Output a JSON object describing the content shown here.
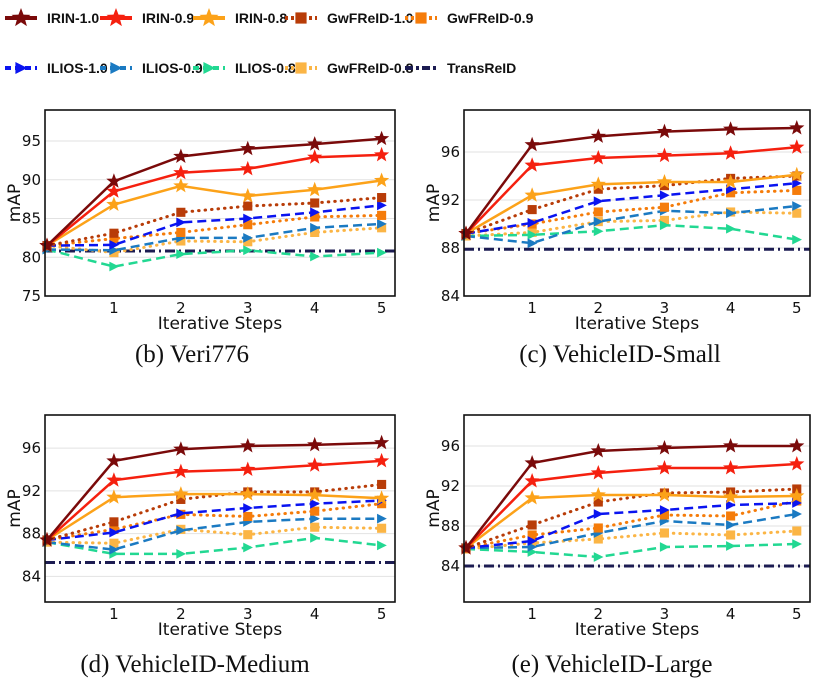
{
  "legend": {
    "placement": "top",
    "entries": [
      {
        "name": "IRIN-1.0",
        "color": "#7a0a0a",
        "line": "solid",
        "marker": "star"
      },
      {
        "name": "IRIN-0.9",
        "color": "#f5200f",
        "line": "solid",
        "marker": "star"
      },
      {
        "name": "IRIN-0.8",
        "color": "#fca219",
        "line": "solid",
        "marker": "star"
      },
      {
        "name": "GwFReID-1.0",
        "color": "#b83c08",
        "line": "dotted",
        "marker": "square"
      },
      {
        "name": "GwFReID-0.9",
        "color": "#f57c0a",
        "line": "dotted",
        "marker": "square"
      },
      {
        "name": "ILIOS-1.0",
        "color": "#0a14f0",
        "line": "dashed",
        "marker": "triangle-right"
      },
      {
        "name": "ILIOS-0.9",
        "color": "#1b7ac2",
        "line": "dashed",
        "marker": "triangle-right"
      },
      {
        "name": "ILIOS-0.8",
        "color": "#22d892",
        "line": "dashed",
        "marker": "triangle-right"
      },
      {
        "name": "GwFReID-0.8",
        "color": "#fbb545",
        "line": "dotted",
        "marker": "square"
      },
      {
        "name": "TransReID",
        "color": "#1c1c52",
        "line": "dashdot",
        "marker": "none"
      }
    ]
  },
  "chart_data": [
    {
      "type": "line",
      "caption": "(b) Veri776",
      "xlabel": "Iterative Steps",
      "ylabel": "mAP",
      "x": [
        0,
        1,
        2,
        3,
        4,
        5
      ],
      "xticks": [
        1,
        2,
        3,
        4,
        5
      ],
      "yticks": [
        75,
        80,
        85,
        90,
        95
      ],
      "ylim": [
        75,
        99
      ],
      "grid": "horizontal",
      "series": [
        {
          "name": "IRIN-1.0",
          "values": [
            81.5,
            89.8,
            93.0,
            94.0,
            94.6,
            95.3
          ]
        },
        {
          "name": "IRIN-0.9",
          "values": [
            81.5,
            88.5,
            90.9,
            91.4,
            92.9,
            93.2
          ]
        },
        {
          "name": "IRIN-0.8",
          "values": [
            81.5,
            86.8,
            89.2,
            87.9,
            88.7,
            89.9
          ]
        },
        {
          "name": "GwFReID-1.0",
          "values": [
            81.5,
            83.1,
            85.8,
            86.6,
            87.0,
            87.7
          ]
        },
        {
          "name": "GwFReID-0.9",
          "values": [
            81.5,
            82.4,
            83.2,
            84.2,
            85.2,
            85.4
          ]
        },
        {
          "name": "ILIOS-1.0",
          "values": [
            81.5,
            81.6,
            84.5,
            85.0,
            85.8,
            86.7
          ]
        },
        {
          "name": "ILIOS-0.9",
          "values": [
            81.0,
            80.9,
            82.5,
            82.5,
            83.8,
            84.3
          ]
        },
        {
          "name": "ILIOS-0.8",
          "values": [
            81.0,
            78.8,
            80.4,
            80.9,
            80.1,
            80.6
          ]
        },
        {
          "name": "GwFReID-0.8",
          "values": [
            81.5,
            80.6,
            82.1,
            82.0,
            83.2,
            83.8
          ]
        },
        {
          "name": "TransReID",
          "values": [
            80.8,
            80.8,
            80.8,
            80.8,
            80.8,
            80.8
          ]
        }
      ]
    },
    {
      "type": "line",
      "caption": "(c) VehicleID-Small",
      "xlabel": "Iterative Steps",
      "ylabel": "mAP",
      "x": [
        0,
        1,
        2,
        3,
        4,
        5
      ],
      "xticks": [
        1,
        2,
        3,
        4,
        5
      ],
      "yticks": [
        84,
        88,
        92,
        96
      ],
      "ylim": [
        84,
        99.5
      ],
      "grid": "horizontal",
      "series": [
        {
          "name": "IRIN-1.0",
          "values": [
            89.2,
            96.6,
            97.3,
            97.7,
            97.9,
            98.0
          ]
        },
        {
          "name": "IRIN-0.9",
          "values": [
            89.2,
            94.9,
            95.5,
            95.7,
            95.9,
            96.4
          ]
        },
        {
          "name": "IRIN-0.8",
          "values": [
            89.2,
            92.4,
            93.3,
            93.5,
            93.5,
            94.1
          ]
        },
        {
          "name": "GwFReID-1.0",
          "values": [
            89.2,
            91.2,
            92.9,
            93.2,
            93.8,
            94.0
          ]
        },
        {
          "name": "GwFReID-0.9",
          "values": [
            89.2,
            90.0,
            91.0,
            91.4,
            92.6,
            92.8
          ]
        },
        {
          "name": "ILIOS-1.0",
          "values": [
            89.2,
            90.1,
            91.9,
            92.4,
            92.9,
            93.4
          ]
        },
        {
          "name": "ILIOS-0.9",
          "values": [
            89.0,
            88.4,
            90.2,
            91.1,
            90.9,
            91.5
          ]
        },
        {
          "name": "ILIOS-0.8",
          "values": [
            89.0,
            89.1,
            89.4,
            89.9,
            89.6,
            88.7
          ]
        },
        {
          "name": "GwFReID-0.8",
          "values": [
            89.0,
            89.3,
            90.2,
            90.3,
            91.0,
            90.9
          ]
        },
        {
          "name": "TransReID",
          "values": [
            87.9,
            87.9,
            87.9,
            87.9,
            87.9,
            87.9
          ]
        }
      ]
    },
    {
      "type": "line",
      "caption": "(d) VehicleID-Medium",
      "xlabel": "Iterative Steps",
      "ylabel": "mAP",
      "x": [
        0,
        1,
        2,
        3,
        4,
        5
      ],
      "xticks": [
        1,
        2,
        3,
        4,
        5
      ],
      "yticks": [
        84,
        88,
        92,
        96
      ],
      "ylim": [
        81.6,
        99.1
      ],
      "grid": "horizontal",
      "series": [
        {
          "name": "IRIN-1.0",
          "values": [
            87.4,
            94.8,
            95.9,
            96.2,
            96.3,
            96.5
          ]
        },
        {
          "name": "IRIN-0.9",
          "values": [
            87.4,
            93.0,
            93.8,
            94.0,
            94.4,
            94.8
          ]
        },
        {
          "name": "IRIN-0.8",
          "values": [
            87.4,
            91.4,
            91.7,
            91.7,
            91.6,
            91.3
          ]
        },
        {
          "name": "GwFReID-1.0",
          "values": [
            87.4,
            89.1,
            91.2,
            91.9,
            91.9,
            92.6
          ]
        },
        {
          "name": "GwFReID-0.9",
          "values": [
            87.4,
            88.4,
            89.8,
            89.6,
            90.1,
            90.8
          ]
        },
        {
          "name": "ILIOS-1.0",
          "values": [
            87.4,
            88.1,
            89.9,
            90.4,
            90.8,
            91.1
          ]
        },
        {
          "name": "ILIOS-0.9",
          "values": [
            87.2,
            86.5,
            88.3,
            89.1,
            89.4,
            89.4
          ]
        },
        {
          "name": "ILIOS-0.8",
          "values": [
            87.2,
            86.1,
            86.1,
            86.7,
            87.6,
            86.9
          ]
        },
        {
          "name": "GwFReID-0.8",
          "values": [
            87.2,
            87.1,
            88.4,
            87.9,
            88.6,
            88.5
          ]
        },
        {
          "name": "TransReID",
          "values": [
            85.3,
            85.3,
            85.3,
            85.3,
            85.3,
            85.3
          ]
        }
      ]
    },
    {
      "type": "line",
      "caption": "(e) VehicleID-Large",
      "xlabel": "Iterative Steps",
      "ylabel": "mAP",
      "x": [
        0,
        1,
        2,
        3,
        4,
        5
      ],
      "xticks": [
        1,
        2,
        3,
        4,
        5
      ],
      "yticks": [
        84,
        88,
        92,
        96
      ],
      "ylim": [
        80.4,
        99.1
      ],
      "grid": "horizontal",
      "series": [
        {
          "name": "IRIN-1.0",
          "values": [
            85.8,
            94.3,
            95.5,
            95.8,
            96.0,
            96.0
          ]
        },
        {
          "name": "IRIN-0.9",
          "values": [
            85.8,
            92.5,
            93.3,
            93.8,
            93.8,
            94.2
          ]
        },
        {
          "name": "IRIN-0.8",
          "values": [
            85.8,
            90.8,
            91.1,
            91.1,
            90.9,
            91.0
          ]
        },
        {
          "name": "GwFReID-1.0",
          "values": [
            85.8,
            88.1,
            90.4,
            91.3,
            91.4,
            91.7
          ]
        },
        {
          "name": "GwFReID-0.9",
          "values": [
            85.8,
            87.1,
            87.8,
            89.1,
            89.0,
            90.5
          ]
        },
        {
          "name": "ILIOS-1.0",
          "values": [
            85.8,
            86.5,
            89.2,
            89.6,
            90.1,
            90.3
          ]
        },
        {
          "name": "ILIOS-0.9",
          "values": [
            85.8,
            85.9,
            87.3,
            88.5,
            88.1,
            89.2
          ]
        },
        {
          "name": "ILIOS-0.8",
          "values": [
            85.7,
            85.4,
            84.9,
            85.9,
            86.0,
            86.2
          ]
        },
        {
          "name": "GwFReID-0.8",
          "values": [
            85.7,
            86.3,
            86.7,
            87.3,
            87.1,
            87.5
          ]
        },
        {
          "name": "TransReID",
          "values": [
            84.0,
            84.0,
            84.0,
            84.0,
            84.0,
            84.0
          ]
        }
      ]
    }
  ]
}
